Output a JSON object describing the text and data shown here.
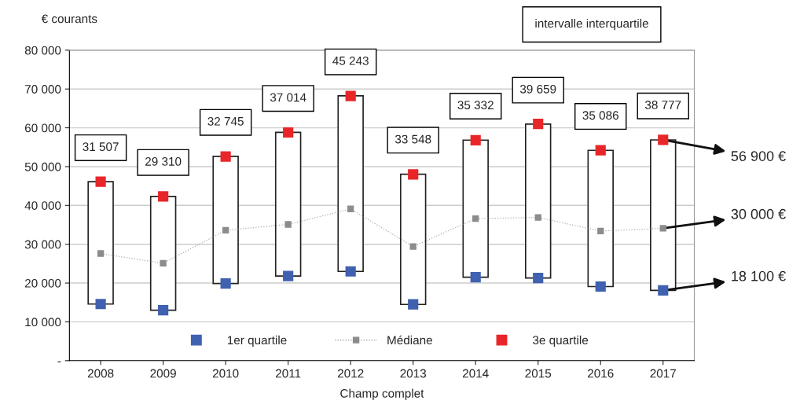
{
  "chart_data": {
    "type": "bar",
    "xlabel": "Champ complet",
    "ylabel": "€ courants",
    "categories": [
      "2008",
      "2009",
      "2010",
      "2011",
      "2012",
      "2013",
      "2014",
      "2015",
      "2016",
      "2017"
    ],
    "series": [
      {
        "color": "#ffffff",
        "base": [
          14600,
          13000,
          19900,
          21800,
          23000,
          14500,
          21500,
          21300,
          19100,
          18100
        ],
        "values": [
          31507,
          29310,
          32745,
          37014,
          45243,
          33548,
          35332,
          39659,
          35086,
          38777
        ],
        "value_labels": [
          "31 507",
          "29 310",
          "32 745",
          "37 014",
          "45 243",
          "33 548",
          "35 332",
          "39 659",
          "35 086",
          "38 777"
        ]
      },
      {
        "type": "scatter",
        "name": "1er quartile",
        "color": "#4060b0",
        "marker": "square",
        "values": [
          14600,
          13000,
          19900,
          21800,
          23000,
          14500,
          21500,
          21300,
          19100,
          18100
        ]
      },
      {
        "type": "line",
        "name": "Médiane",
        "color": "#8c8c8c",
        "marker": "square",
        "line_style": "dotted",
        "values": [
          27600,
          25100,
          33600,
          35100,
          39100,
          29400,
          36600,
          36900,
          33400,
          34100
        ]
      },
      {
        "type": "scatter",
        "name": "3e quartile",
        "color": "#e8262a",
        "marker": "square",
        "values": [
          46100,
          42300,
          52600,
          58800,
          68200,
          48000,
          56800,
          61000,
          54200,
          56900
        ]
      }
    ],
    "ylim": [
      0,
      80000
    ],
    "yticks": [
      {
        "value": 0,
        "label": "-"
      },
      {
        "value": 10000,
        "label": "10 000"
      },
      {
        "value": 20000,
        "label": "20 000"
      },
      {
        "value": 30000,
        "label": "30 000"
      },
      {
        "value": 40000,
        "label": "40 000"
      },
      {
        "value": 50000,
        "label": "50 000"
      },
      {
        "value": 60000,
        "label": "60 000"
      },
      {
        "value": 70000,
        "label": "70 000"
      },
      {
        "value": 80000,
        "label": "80 000"
      }
    ],
    "grid": "y",
    "legend": "bottom",
    "annotations": [
      "intervalle interquartile",
      {
        "text": "56 900 €",
        "x": "2017",
        "y": 56900
      },
      {
        "text": "30 000 €",
        "x": "2017",
        "y": 34100
      },
      {
        "text": "18 100 €",
        "x": "2017",
        "y": 18100
      }
    ]
  }
}
